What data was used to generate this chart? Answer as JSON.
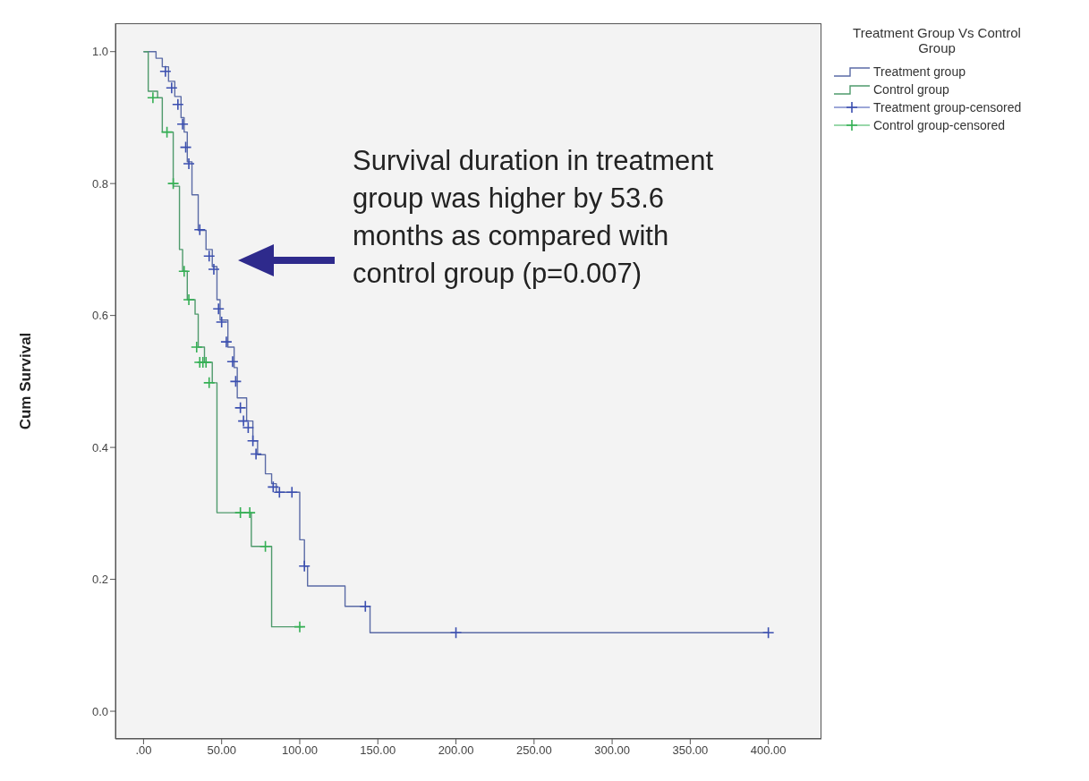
{
  "chart_data": {
    "type": "step",
    "ylabel": "Cum Survival",
    "legend_title": "Treatment Group Vs Control Group",
    "legend": "right",
    "xlim": [
      -18,
      434
    ],
    "ylim": [
      -0.042,
      1.043
    ],
    "xticks": [
      {
        "value": 0,
        "label": ".00"
      },
      {
        "value": 50,
        "label": "50.00"
      },
      {
        "value": 100,
        "label": "100.00"
      },
      {
        "value": 150,
        "label": "150.00"
      },
      {
        "value": 200,
        "label": "200.00"
      },
      {
        "value": 250,
        "label": "250.00"
      },
      {
        "value": 300,
        "label": "300.00"
      },
      {
        "value": 350,
        "label": "350.00"
      },
      {
        "value": 400,
        "label": "400.00"
      }
    ],
    "yticks": [
      {
        "value": 0,
        "label": "0.0"
      },
      {
        "value": 0.2,
        "label": "0.2"
      },
      {
        "value": 0.4,
        "label": "0.4"
      },
      {
        "value": 0.6,
        "label": "0.6"
      },
      {
        "value": 0.8,
        "label": "0.8"
      },
      {
        "value": 1,
        "label": "1.0"
      }
    ],
    "series": [
      {
        "name": "Treatment group",
        "color": "#5b6ba6",
        "x": [
          0,
          8,
          12,
          16,
          20,
          24,
          26,
          28,
          31,
          35,
          40,
          44,
          47,
          49,
          54,
          58,
          60,
          66,
          70,
          73,
          78,
          82,
          85,
          100,
          103,
          105,
          129,
          145,
          400
        ],
        "values": [
          1.0,
          0.99,
          0.977,
          0.955,
          0.932,
          0.9,
          0.878,
          0.833,
          0.783,
          0.729,
          0.7,
          0.674,
          0.624,
          0.593,
          0.552,
          0.521,
          0.475,
          0.44,
          0.41,
          0.389,
          0.36,
          0.345,
          0.332,
          0.26,
          0.22,
          0.19,
          0.159,
          0.119,
          0.119
        ]
      },
      {
        "name": "Control group",
        "color": "#4f9a6c",
        "x": [
          0,
          3,
          9,
          12,
          19,
          23,
          25,
          28,
          33,
          35,
          39,
          44,
          47,
          69,
          82,
          102
        ],
        "values": [
          1.0,
          0.94,
          0.93,
          0.878,
          0.796,
          0.7,
          0.667,
          0.624,
          0.602,
          0.552,
          0.529,
          0.498,
          0.301,
          0.25,
          0.128,
          0.128
        ]
      },
      {
        "name": "Treatment group-censored",
        "type": "scatter",
        "marker": "cross",
        "color": "#3b4fb0",
        "x": [
          14,
          18,
          22,
          25,
          27,
          29,
          36,
          42,
          45,
          48,
          50,
          53,
          57,
          59,
          62,
          64,
          67,
          70,
          72,
          83,
          87,
          95,
          103,
          142,
          200,
          400
        ],
        "values": [
          0.97,
          0.945,
          0.92,
          0.89,
          0.855,
          0.83,
          0.73,
          0.69,
          0.67,
          0.61,
          0.59,
          0.56,
          0.53,
          0.5,
          0.46,
          0.44,
          0.43,
          0.41,
          0.39,
          0.34,
          0.332,
          0.332,
          0.22,
          0.159,
          0.119,
          0.119
        ]
      },
      {
        "name": "Control group-censored",
        "type": "scatter",
        "marker": "cross",
        "color": "#35b054",
        "x": [
          6,
          15,
          19,
          26,
          29,
          34,
          36,
          38,
          40,
          42,
          62,
          68,
          78,
          100
        ],
        "values": [
          0.93,
          0.878,
          0.8,
          0.667,
          0.624,
          0.552,
          0.529,
          0.529,
          0.529,
          0.498,
          0.301,
          0.301,
          0.25,
          0.128
        ]
      }
    ],
    "annotations": [
      "Survival duration in treatment group was higher by 53.6 months as compared with control group (p=0.007)"
    ]
  }
}
